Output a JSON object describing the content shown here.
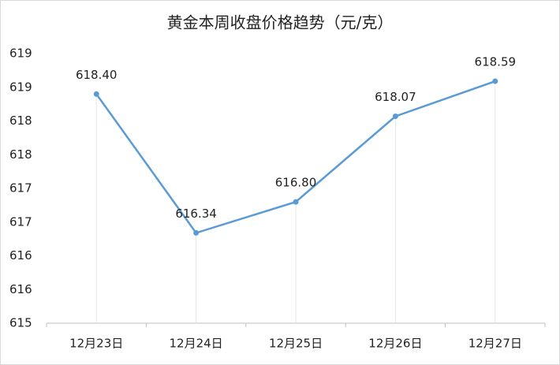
{
  "chart_data": {
    "type": "line",
    "title": "黄金本周收盘价格趋势（元/克）",
    "categories": [
      "12月23日",
      "12月24日",
      "12月25日",
      "12月26日",
      "12月27日"
    ],
    "values": [
      618.4,
      616.34,
      616.8,
      618.07,
      618.59
    ],
    "value_labels": [
      "618.40",
      "616.34",
      "616.80",
      "618.07",
      "618.59"
    ],
    "color": "#5b9bd5",
    "ylim": [
      615,
      619
    ],
    "yticks": [
      615,
      {
        "value": 615.5,
        "label": "616"
      },
      616,
      {
        "value": 616.5,
        "label": "617"
      },
      617,
      {
        "value": 617.5,
        "label": "618"
      },
      618,
      {
        "value": 618.5,
        "label": "619"
      },
      619
    ]
  }
}
